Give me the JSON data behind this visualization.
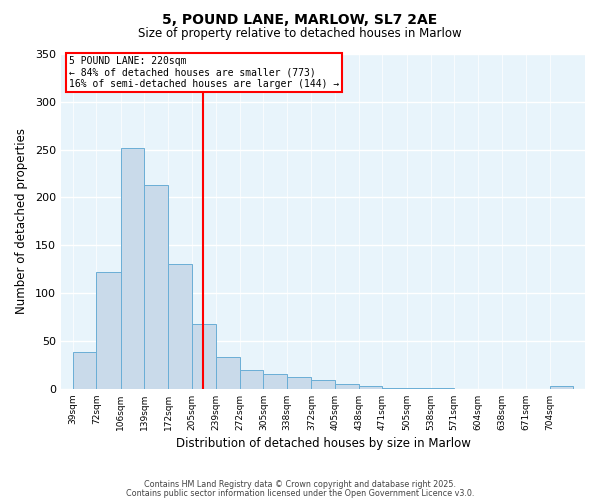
{
  "title": "5, POUND LANE, MARLOW, SL7 2AE",
  "subtitle": "Size of property relative to detached houses in Marlow",
  "xlabel": "Distribution of detached houses by size in Marlow",
  "ylabel": "Number of detached properties",
  "bin_labels": [
    "39sqm",
    "72sqm",
    "106sqm",
    "139sqm",
    "172sqm",
    "205sqm",
    "239sqm",
    "272sqm",
    "305sqm",
    "338sqm",
    "372sqm",
    "405sqm",
    "438sqm",
    "471sqm",
    "505sqm",
    "538sqm",
    "571sqm",
    "604sqm",
    "638sqm",
    "671sqm",
    "704sqm"
  ],
  "bin_edges": [
    39,
    72,
    106,
    139,
    172,
    205,
    239,
    272,
    305,
    338,
    372,
    405,
    438,
    471,
    505,
    538,
    571,
    604,
    638,
    671,
    704,
    737
  ],
  "values": [
    38,
    122,
    252,
    213,
    130,
    68,
    33,
    20,
    16,
    12,
    9,
    5,
    3,
    1,
    1,
    1,
    0,
    0,
    0,
    0,
    3
  ],
  "bar_color": "#c9daea",
  "bar_edge_color": "#6aaed6",
  "reference_line_x": 220,
  "reference_line_color": "red",
  "annotation_title": "5 POUND LANE: 220sqm",
  "annotation_line1": "← 84% of detached houses are smaller (773)",
  "annotation_line2": "16% of semi-detached houses are larger (144) →",
  "annotation_box_color": "red",
  "background_color": "#e8f4fb",
  "ylim": [
    0,
    350
  ],
  "yticks": [
    0,
    50,
    100,
    150,
    200,
    250,
    300,
    350
  ],
  "footer1": "Contains HM Land Registry data © Crown copyright and database right 2025.",
  "footer2": "Contains public sector information licensed under the Open Government Licence v3.0."
}
